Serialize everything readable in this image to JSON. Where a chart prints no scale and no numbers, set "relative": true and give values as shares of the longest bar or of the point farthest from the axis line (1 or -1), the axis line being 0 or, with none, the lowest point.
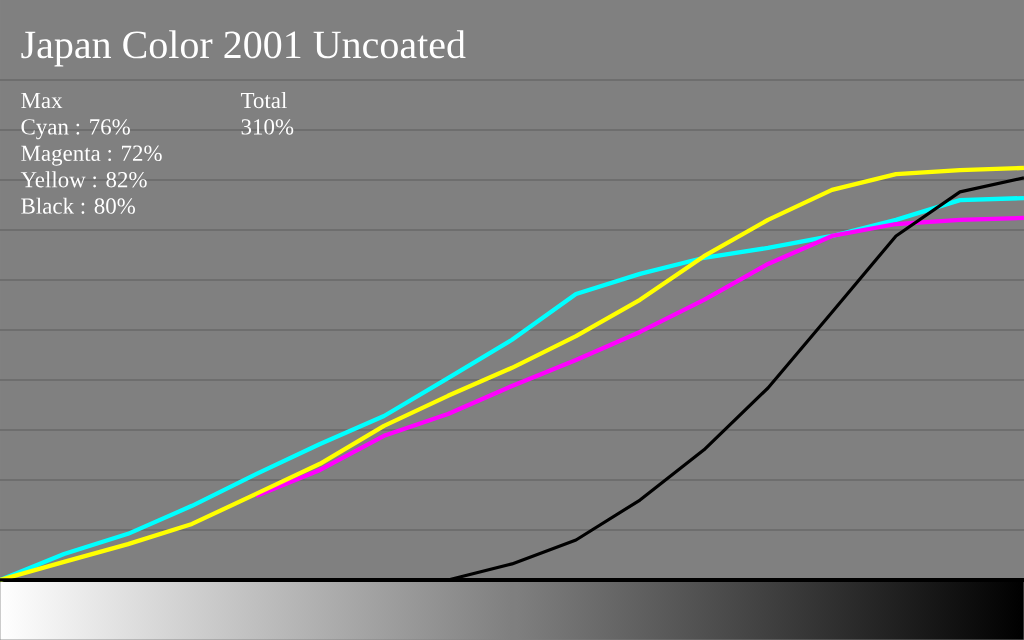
{
  "chart_data": {
    "type": "line",
    "title": "Japan Color 2001 Uncoated",
    "annotations": [
      "Max",
      "Cyan : 76%",
      "Magenta : 72%",
      "Yellow : 82%",
      "Black : 80%",
      "Total",
      "310%"
    ],
    "relative": true,
    "grid": "y",
    "marker": "none",
    "line_style": "solid",
    "categories": [
      null,
      null,
      null,
      null,
      null,
      null,
      null,
      null,
      null,
      null,
      null,
      null,
      null,
      null,
      null,
      null,
      null
    ],
    "series": [
      {
        "color": "#00ffff",
        "values": [
          0,
          0.063,
          0.112,
          0.18,
          0.257,
          0.33,
          0.398,
          0.49,
          0.583,
          0.694,
          0.743,
          0.782,
          0.806,
          0.835,
          0.874,
          0.922,
          0.927
        ]
      },
      {
        "color": "#ff00ff",
        "values": [
          null,
          null,
          null,
          null,
          0.204,
          0.267,
          0.35,
          0.403,
          0.471,
          0.534,
          0.602,
          0.68,
          0.767,
          0.835,
          0.864,
          0.874,
          0.879
        ]
      },
      {
        "color": "#ffff00",
        "values": [
          0,
          0.044,
          0.087,
          0.136,
          0.209,
          0.282,
          0.374,
          0.447,
          0.515,
          0.592,
          0.68,
          0.786,
          0.874,
          0.947,
          0.985,
          0.995,
          1
        ]
      },
      {
        "color": "#000000",
        "values": [
          0,
          0,
          0,
          0,
          0,
          0,
          0,
          0,
          0.039,
          0.097,
          0.194,
          0.316,
          0.466,
          0.65,
          0.835,
          0.942,
          0.976
        ]
      }
    ]
  }
}
